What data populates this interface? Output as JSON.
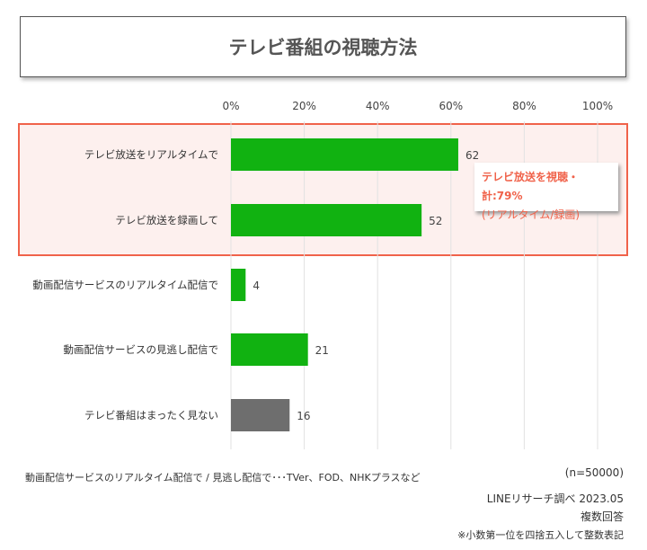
{
  "chart_data": {
    "type": "bar",
    "orientation": "horizontal",
    "title": "テレビ番組の視聴方法",
    "categories": [
      "テレビ放送をリアルタイムで",
      "テレビ放送を録画して",
      "動画配信サービスのリアルタイム配信で",
      "動画配信サービスの見逃し配信で",
      "テレビ番組はまったく見ない"
    ],
    "values": [
      62,
      52,
      4,
      21,
      16
    ],
    "bar_colors": [
      "#11b211",
      "#11b211",
      "#11b211",
      "#11b211",
      "#6e6e6e"
    ],
    "xlim": [
      0,
      100
    ],
    "xticks": [
      "0%",
      "20%",
      "40%",
      "60%",
      "80%",
      "100%"
    ],
    "grid": true,
    "highlight_color": "#f0624a",
    "annotation": {
      "line1": "テレビ放送を視聴・計:79%",
      "line2": "(リアルタイム/録画)"
    }
  },
  "footer": {
    "note": "動画配信サービスのリアルタイム配信で / 見逃し配信で･･･TVer、FOD、NHKプラスなど",
    "n": "(n=50000)",
    "source": "LINEリサーチ調べ 2023.05",
    "answer_type": "複数回答",
    "rounding": "※小数第一位を四捨五入して整数表記"
  }
}
